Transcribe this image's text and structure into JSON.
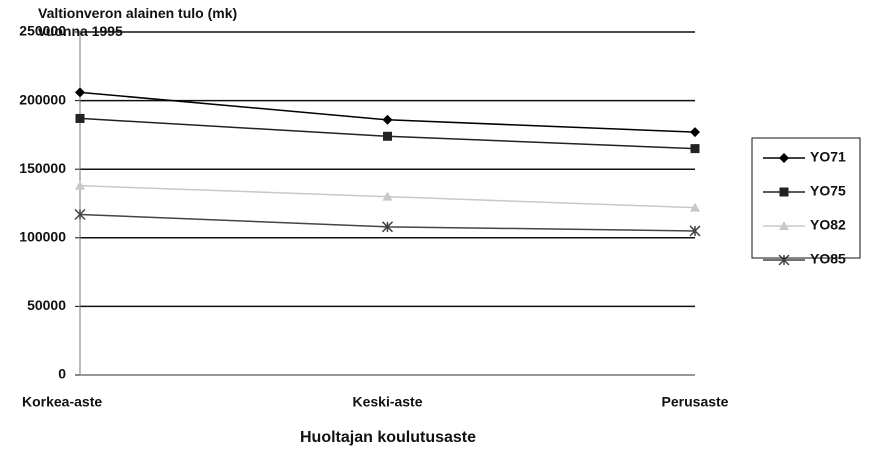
{
  "chart_data": {
    "type": "line",
    "title": "Valtionveron alainen tulo (mk) vuonna 1995",
    "x_label": "Huoltajan koulutusaste",
    "categories": [
      "Korkea-aste",
      "Keski-aste",
      "Perusaste"
    ],
    "series": [
      {
        "name": "YO71",
        "color": "#000000",
        "marker": "diamond",
        "values": [
          206000,
          186000,
          177000
        ]
      },
      {
        "name": "YO75",
        "color": "#222222",
        "marker": "square",
        "values": [
          187000,
          174000,
          165000
        ]
      },
      {
        "name": "YO82",
        "color": "#c8c8c8",
        "marker": "triangle",
        "values": [
          138000,
          130000,
          122000
        ]
      },
      {
        "name": "YO85",
        "color": "#444444",
        "marker": "star",
        "values": [
          117000,
          108000,
          105000
        ]
      }
    ],
    "ylim": [
      0,
      250000
    ],
    "yticks": [
      0,
      50000,
      100000,
      150000,
      200000,
      250000
    ],
    "grid": true,
    "legend": "right"
  }
}
